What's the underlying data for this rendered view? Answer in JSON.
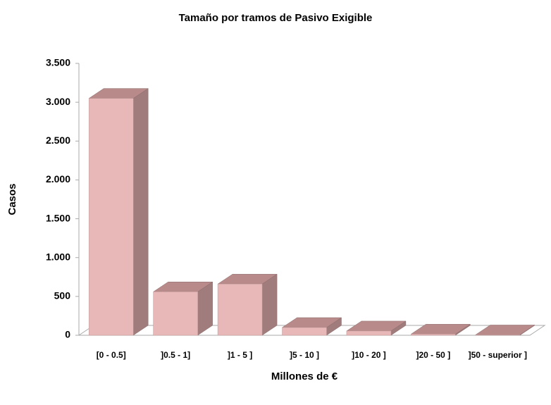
{
  "chart_data": {
    "type": "bar3d",
    "title": "Tamaño por tramos de Pasivo Exigible",
    "x_label": "Millones de €",
    "y_label": "Casos",
    "categories": [
      "[0  - 0.5]",
      "]0.5  - 1]",
      "]1  - 5 ]",
      "]5  - 10 ]",
      "]10  - 20 ]",
      "]20  - 50 ]",
      "]50  - superior ]"
    ],
    "values": [
      3050,
      560,
      660,
      100,
      55,
      15,
      5
    ],
    "color": "#e8b8b8",
    "ylim": [
      0,
      3500
    ],
    "yticks": [
      0,
      500,
      {
        "value": 1000,
        "label": "1.000"
      },
      {
        "value": 1500,
        "label": "1.500"
      },
      {
        "value": 2000,
        "label": "2.000"
      },
      {
        "value": 2500,
        "label": "2.500"
      },
      {
        "value": 3000,
        "label": "3.000"
      },
      {
        "value": 3500,
        "label": "3.500"
      }
    ]
  }
}
